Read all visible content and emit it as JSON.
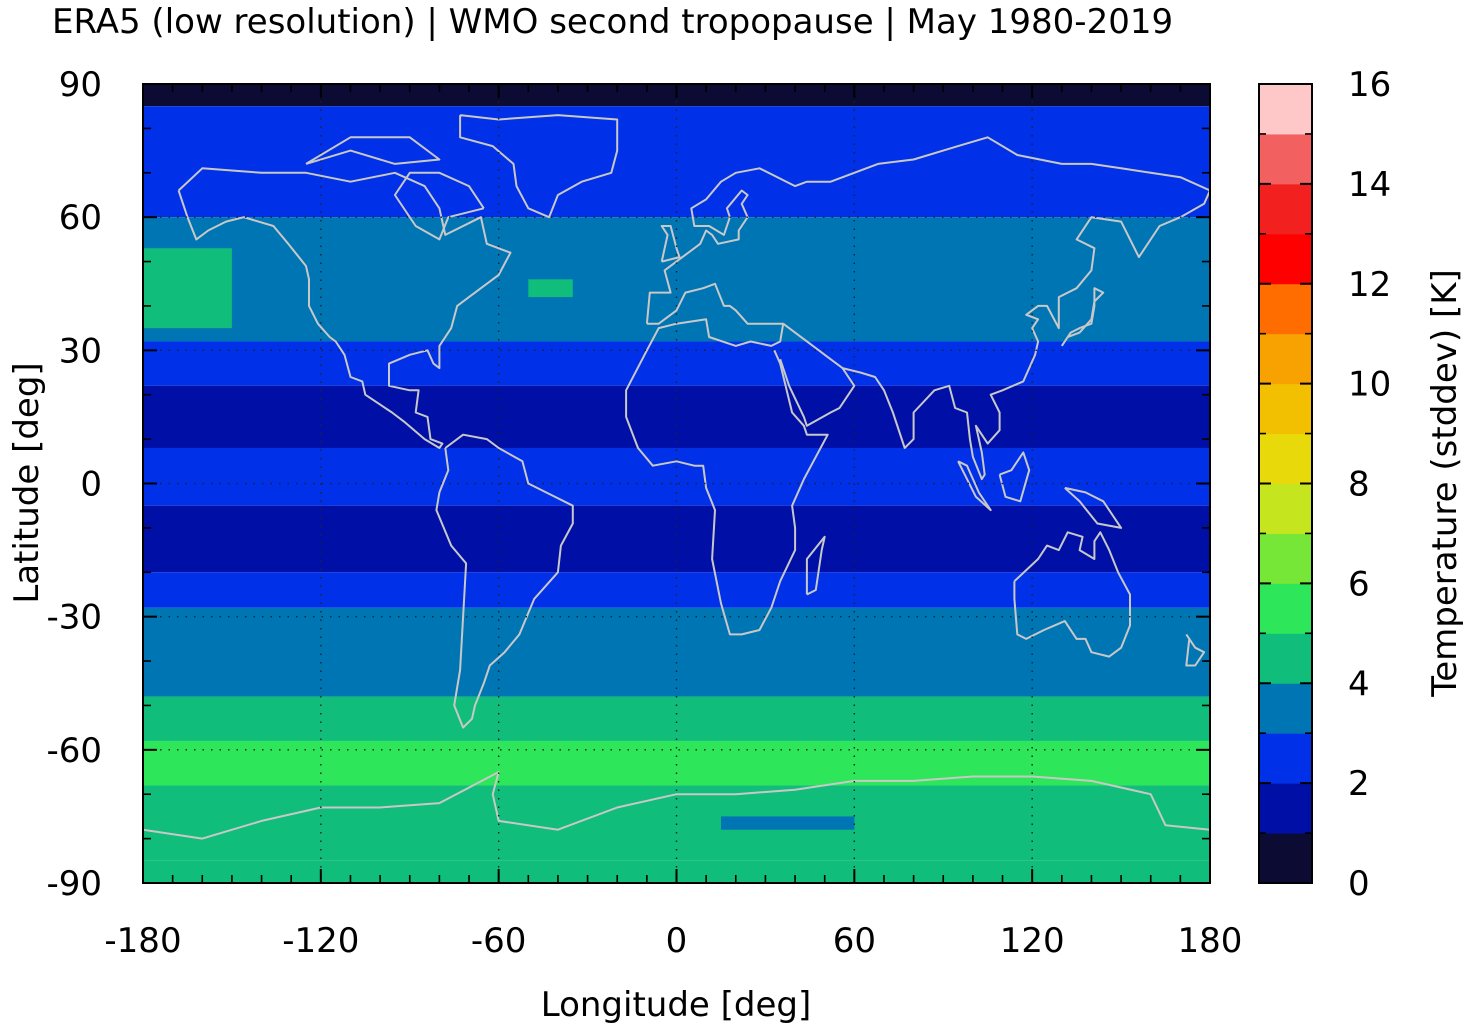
{
  "chart_data": {
    "type": "heatmap",
    "title": "ERA5 (low resolution) | WMO second tropopause | May 1980-2019",
    "xlabel": "Longitude [deg]",
    "ylabel": "Latitude [deg]",
    "colorbar_label": "Temperature (stddev) [K]",
    "xlim": [
      -180,
      180
    ],
    "ylim": [
      -90,
      90
    ],
    "x_ticks": [
      "-180",
      "-120",
      "-60",
      "0",
      "60",
      "120",
      "180"
    ],
    "y_ticks": [
      "90",
      "60",
      "30",
      "0",
      "-30",
      "-60",
      "-90"
    ],
    "colorbar_ticks": [
      "16",
      "14",
      "12",
      "10",
      "8",
      "6",
      "4",
      "2",
      "0"
    ],
    "colorbar_range": [
      0,
      16
    ],
    "colorbar_step": 1,
    "grid": true,
    "coastlines": true,
    "colormap": [
      "#0b0b33",
      "#0010a6",
      "#0030e8",
      "#0075b4",
      "#10bd7a",
      "#2ee65a",
      "#76e637",
      "#c5e61e",
      "#e8d90a",
      "#f2c000",
      "#f7a200",
      "#ff6d00",
      "#ff0000",
      "#f2211f",
      "#f26060",
      "#ffc8c8"
    ],
    "latitude_band_values": [
      {
        "lat_min": 85,
        "lat_max": 90,
        "value": 0.5
      },
      {
        "lat_min": 60,
        "lat_max": 85,
        "value": 2.5
      },
      {
        "lat_min": 32,
        "lat_max": 60,
        "value": 3.5
      },
      {
        "lat_min": 22,
        "lat_max": 32,
        "value": 2.5
      },
      {
        "lat_min": 8,
        "lat_max": 22,
        "value": 1.5
      },
      {
        "lat_min": -5,
        "lat_max": 8,
        "value": 2.5
      },
      {
        "lat_min": -20,
        "lat_max": -5,
        "value": 1.5
      },
      {
        "lat_min": -28,
        "lat_max": -20,
        "value": 2.5
      },
      {
        "lat_min": -48,
        "lat_max": -28,
        "value": 3.5
      },
      {
        "lat_min": -58,
        "lat_max": -48,
        "value": 4.5
      },
      {
        "lat_min": -68,
        "lat_max": -58,
        "value": 5.5
      },
      {
        "lat_min": -85,
        "lat_max": -68,
        "value": 4.5
      },
      {
        "lat_min": -90,
        "lat_max": -85,
        "value": 4.5
      }
    ],
    "regional_values": [
      {
        "lon_min": -180,
        "lon_max": -150,
        "lat_min": 35,
        "lat_max": 53,
        "value": 4.5
      },
      {
        "lon_min": -50,
        "lon_max": -35,
        "lat_min": 42,
        "lat_max": 46,
        "value": 4.5
      },
      {
        "lon_min": -180,
        "lon_max": 180,
        "lat_min": -68,
        "lat_max": -62,
        "value": 5.5
      },
      {
        "lon_min": 15,
        "lon_max": 60,
        "lat_min": -78,
        "lat_max": -75,
        "value": 3.5
      },
      {
        "lon_min": 100,
        "lon_max": 150,
        "lat_min": 50,
        "lat_max": 56,
        "value": 3.5
      }
    ]
  }
}
